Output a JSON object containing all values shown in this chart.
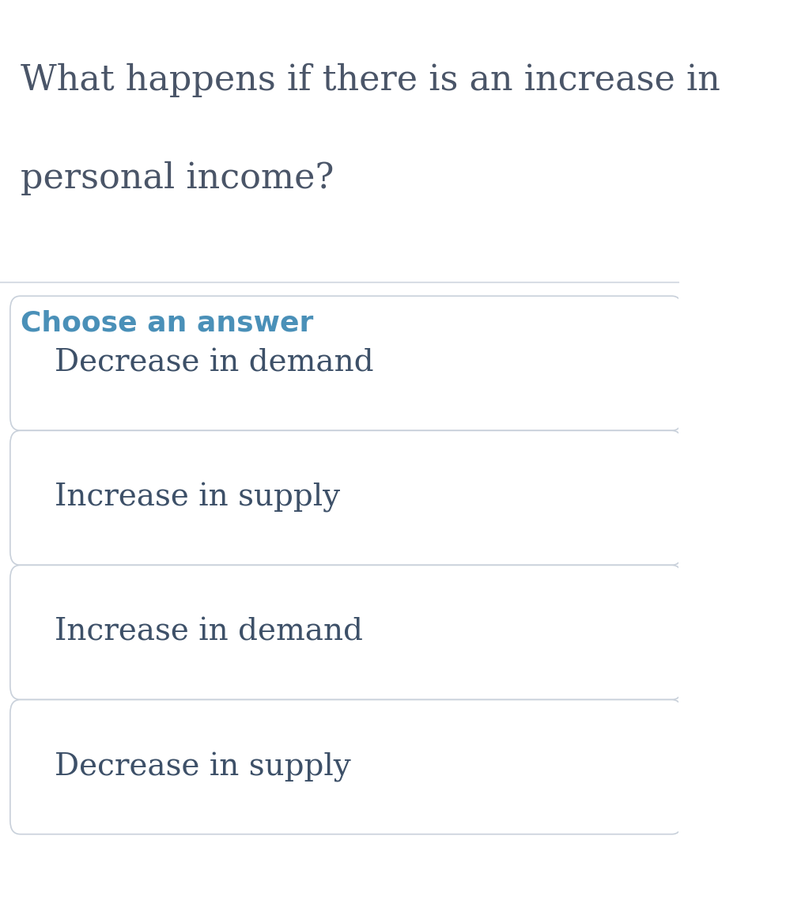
{
  "question_line1": "What happens if there is an increase in",
  "question_line2": "personal income?",
  "question_color": "#4a5568",
  "section_label": "Choose an answer",
  "section_label_color": "#4a90b8",
  "answers": [
    "Decrease in demand",
    "Increase in supply",
    "Increase in demand",
    "Decrease in supply"
  ],
  "answer_text_color": "#3d5068",
  "answer_bg_color": "#ffffff",
  "answer_border_color": "#c8d0da",
  "divider_color": "#d8dde5",
  "background_color": "#ffffff",
  "question_fontsize": 32,
  "section_fontsize": 26,
  "answer_fontsize": 28
}
